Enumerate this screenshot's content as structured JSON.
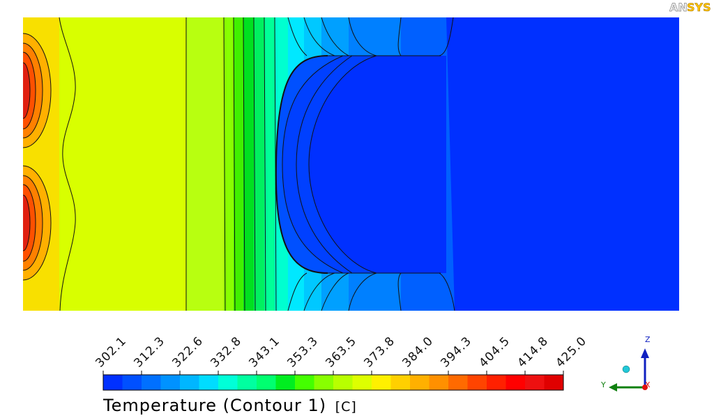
{
  "logo": "ANSYS",
  "legend": {
    "title": "Temperature (Contour 1)",
    "unit": "[C]",
    "ticks": [
      "302.1",
      "312.3",
      "322.6",
      "332.8",
      "343.1",
      "353.3",
      "363.5",
      "373.8",
      "384.0",
      "394.3",
      "404.5",
      "414.8",
      "425.0"
    ],
    "colors": [
      "#0030ff",
      "#0050ff",
      "#0070ff",
      "#0092ff",
      "#00b6ff",
      "#00dcff",
      "#00ffd8",
      "#00ffa0",
      "#00ff70",
      "#00ee20",
      "#44ff00",
      "#88ff00",
      "#b8ff00",
      "#ddff00",
      "#fff000",
      "#ffd000",
      "#ffb000",
      "#ff9000",
      "#ff6a00",
      "#ff4400",
      "#ff2000",
      "#ff0000",
      "#ee1010",
      "#e00000"
    ]
  },
  "axes": {
    "z": "Z",
    "y": "Y",
    "x": "X"
  },
  "colors": {
    "background": "#ffffff",
    "cold": "#0030ff",
    "hot": "#e02010"
  }
}
